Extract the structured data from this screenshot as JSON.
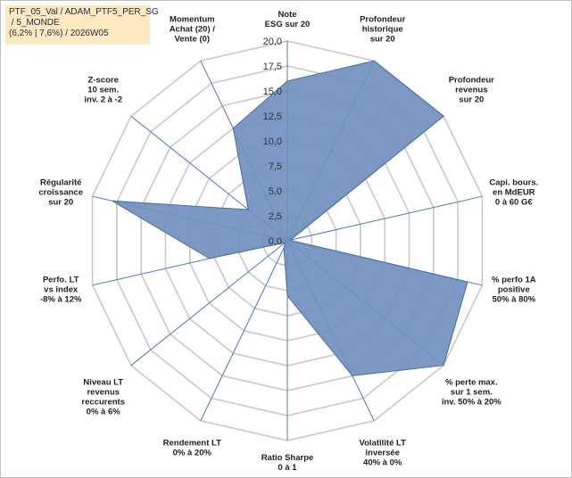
{
  "chart_data": {
    "type": "radar",
    "title_lines": [
      "PTF_05_Val / ADAM_PTF5_PER_SG",
      " / 5_MONDE",
      "(6,2% | 7,6%) / 2026W05"
    ],
    "range": [
      0,
      20
    ],
    "ticks": [
      "0,0",
      "2,5",
      "5,0",
      "7,5",
      "10,0",
      "12,5",
      "15,0",
      "17,5",
      "20,0"
    ],
    "tick_values": [
      0,
      2.5,
      5,
      7.5,
      10,
      12.5,
      15,
      17.5,
      20
    ],
    "axes": [
      {
        "label": [
          "Note",
          "ESG sur 20"
        ],
        "value": 16
      },
      {
        "label": [
          "Profondeur",
          "historique",
          "sur 20"
        ],
        "value": 20
      },
      {
        "label": [
          "Profondeur",
          "revenus",
          "sur 20"
        ],
        "value": 20
      },
      {
        "label": [
          "Capi. bours.",
          "en MdEUR",
          "0 à 60 G€"
        ],
        "value": 0.3
      },
      {
        "label": [
          "% perfo 1A",
          "positive",
          "50% à 80%"
        ],
        "value": 18.5
      },
      {
        "label": [
          "% perte max.",
          "sur 1 sem.",
          "inv. 50% à 20%"
        ],
        "value": 20
      },
      {
        "label": [
          "Volatilité LT",
          "inversée",
          "40% à 0%"
        ],
        "value": 15
      },
      {
        "label": [
          "Ratio Sharpe",
          "0 à 1"
        ],
        "value": 5.5
      },
      {
        "label": [
          "Rendement LT",
          "0% à 20%"
        ],
        "value": 0.8
      },
      {
        "label": [
          "Niveau LT",
          "revenus",
          "reccurents",
          "0% à 6%"
        ],
        "value": 0.3
      },
      {
        "label": [
          "Perfo. LT",
          "vs index",
          "-8% à 12%"
        ],
        "value": 8
      },
      {
        "label": [
          "Régularité",
          "croissance",
          "sur 20"
        ],
        "value": 18
      },
      {
        "label": [
          "Z-score",
          "10 sem.",
          "inv. 2 à -2"
        ],
        "value": 5
      },
      {
        "label": [
          "Momentum",
          "Achat (20) /",
          "Vente (0)"
        ],
        "value": 12.5
      }
    ],
    "colors": {
      "fill": "#7090bd",
      "stroke": "#4a6fa3",
      "grid": "#c8c8c8",
      "axis": "#4a78c0"
    }
  }
}
